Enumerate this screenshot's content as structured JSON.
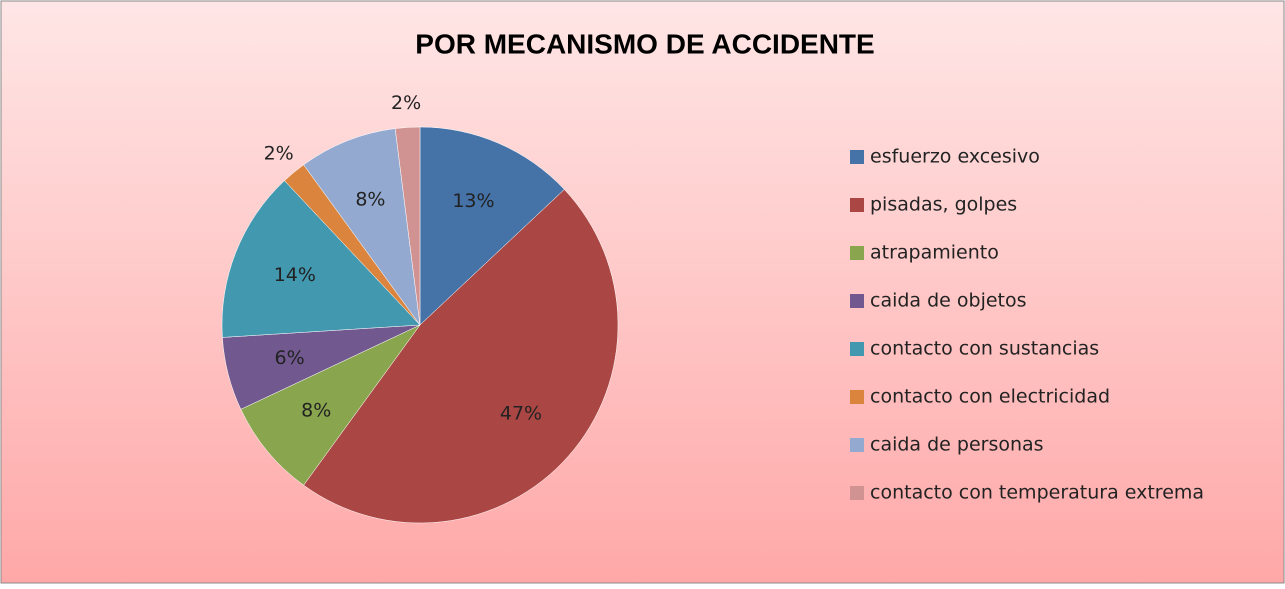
{
  "chart_data": {
    "type": "pie",
    "title": "POR MECANISMO DE ACCIDENTE",
    "categories": [
      "esfuerzo excesivo",
      "pisadas, golpes",
      "atrapamiento",
      "caida de objetos",
      "contacto con sustancias",
      "contacto con electricidad",
      "caida de personas",
      "contacto con temperatura extrema"
    ],
    "values": [
      13,
      47,
      8,
      6,
      14,
      2,
      8,
      2
    ],
    "value_labels": [
      "13%",
      "47%",
      "8%",
      "6%",
      "14%",
      "2%",
      "8%",
      "2%"
    ],
    "colors": [
      "#4572a7",
      "#aa4643",
      "#89a54e",
      "#71588f",
      "#4198af",
      "#db843d",
      "#93a9cf",
      "#d19392"
    ],
    "legend": "right"
  }
}
